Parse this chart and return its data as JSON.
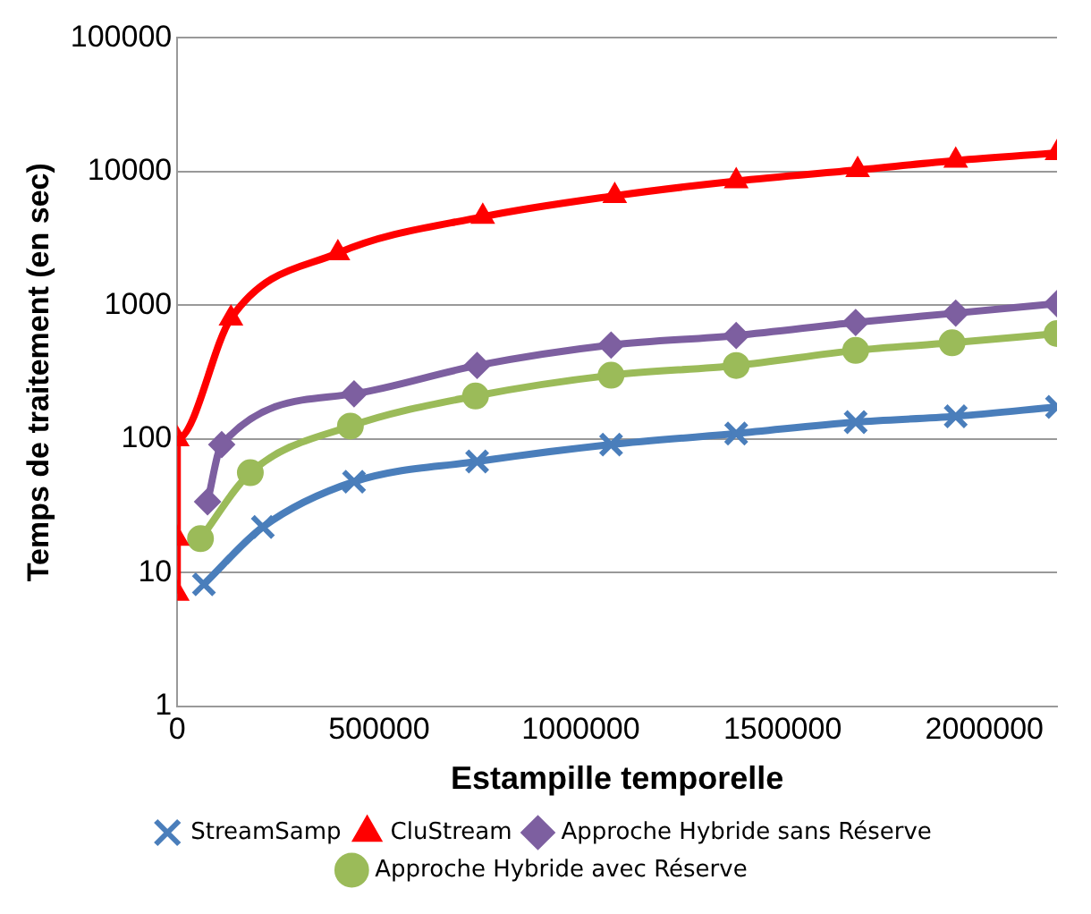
{
  "chart_data": {
    "type": "line",
    "xlabel": "Estampille temporelle",
    "ylabel": "Temps de traitement (en sec)",
    "log": "y",
    "grid": "y",
    "legend": "bottom",
    "line_style": "solid",
    "xlim": [
      0,
      2180000
    ],
    "xticks": [
      0,
      500000,
      1000000,
      1500000,
      2000000
    ],
    "ylim": [
      1,
      100000
    ],
    "yticks": [
      1,
      10,
      100,
      1000,
      10000,
      100000
    ],
    "series": [
      {
        "name": "StreamSamp",
        "color": "#4a7ebb",
        "marker": "cross",
        "x": [
          66000,
          212000,
          438000,
          743000,
          1075000,
          1385000,
          1681000,
          1929000,
          2180000
        ],
        "values": [
          8.2,
          22,
          48,
          68,
          91,
          110,
          134,
          148,
          174
        ]
      },
      {
        "name": "CluStream",
        "color": "#ff0000",
        "marker": "triangle",
        "x": [
          0,
          0,
          0,
          133000,
          398000,
          757000,
          1084000,
          1385000,
          1686000,
          1929000,
          2180000
        ],
        "values": [
          7,
          18,
          100,
          800,
          2460,
          4600,
          6600,
          8500,
          10300,
          12100,
          13800
        ]
      },
      {
        "name": "Approche Hybride sans Réserve",
        "color": "#7d5fa0",
        "marker": "diamond",
        "x": [
          75000,
          110000,
          438000,
          743000,
          1075000,
          1385000,
          1681000,
          1929000,
          2180000
        ],
        "values": [
          34,
          91,
          218,
          355,
          505,
          595,
          745,
          875,
          1030
        ]
      },
      {
        "name": "Approche Hybride avec Réserve",
        "color": "#9bbb59",
        "marker": "circle",
        "x": [
          57500,
          181000,
          429000,
          739000,
          1075000,
          1385000,
          1681000,
          1920000,
          2180000
        ],
        "values": [
          18,
          56,
          125,
          210,
          300,
          355,
          460,
          525,
          615
        ]
      }
    ]
  }
}
